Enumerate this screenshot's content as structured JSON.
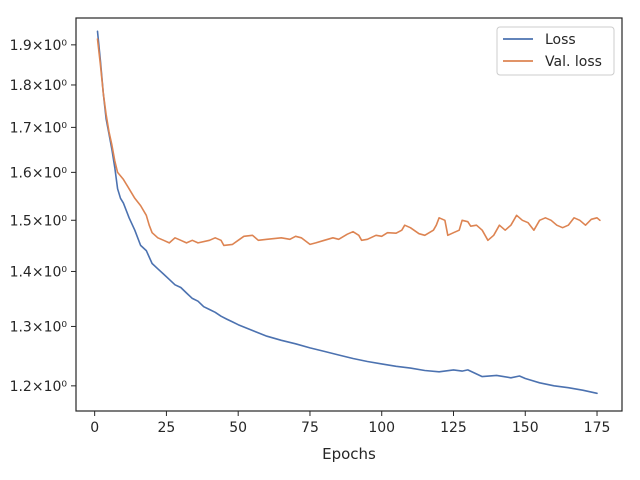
{
  "chart_data": {
    "type": "line",
    "title": "",
    "xlabel": "Epochs",
    "ylabel": "",
    "xlim": [
      -6.5,
      183.7
    ],
    "ylim": [
      1.16,
      1.97
    ],
    "yscale": "log",
    "grid": false,
    "legend_position": "top-right",
    "x_ticks": [
      0,
      25,
      50,
      75,
      100,
      125,
      150,
      175
    ],
    "y_ticks": [
      {
        "value": 1.2,
        "label": "1.2×10⁰"
      },
      {
        "value": 1.3,
        "label": "1.3×10⁰"
      },
      {
        "value": 1.4,
        "label": "1.4×10⁰"
      },
      {
        "value": 1.5,
        "label": "1.5×10⁰"
      },
      {
        "value": 1.6,
        "label": "1.6×10⁰"
      },
      {
        "value": 1.7,
        "label": "1.7×10⁰"
      },
      {
        "value": 1.8,
        "label": "1.8×10⁰"
      },
      {
        "value": 1.9,
        "label": "1.9×10⁰"
      }
    ],
    "series": [
      {
        "name": "Loss",
        "color": "#4c72b0",
        "points": [
          [
            1,
            1.935
          ],
          [
            2,
            1.86
          ],
          [
            3,
            1.78
          ],
          [
            4,
            1.72
          ],
          [
            5,
            1.685
          ],
          [
            6,
            1.65
          ],
          [
            7,
            1.61
          ],
          [
            8,
            1.565
          ],
          [
            9,
            1.545
          ],
          [
            10,
            1.535
          ],
          [
            12,
            1.505
          ],
          [
            14,
            1.48
          ],
          [
            16,
            1.45
          ],
          [
            18,
            1.44
          ],
          [
            20,
            1.415
          ],
          [
            22,
            1.405
          ],
          [
            24,
            1.395
          ],
          [
            26,
            1.385
          ],
          [
            28,
            1.375
          ],
          [
            30,
            1.37
          ],
          [
            32,
            1.36
          ],
          [
            34,
            1.35
          ],
          [
            36,
            1.345
          ],
          [
            38,
            1.335
          ],
          [
            40,
            1.33
          ],
          [
            42,
            1.325
          ],
          [
            44,
            1.318
          ],
          [
            46,
            1.313
          ],
          [
            48,
            1.308
          ],
          [
            50,
            1.303
          ],
          [
            55,
            1.293
          ],
          [
            60,
            1.283
          ],
          [
            65,
            1.276
          ],
          [
            70,
            1.27
          ],
          [
            75,
            1.263
          ],
          [
            80,
            1.257
          ],
          [
            85,
            1.251
          ],
          [
            90,
            1.245
          ],
          [
            95,
            1.24
          ],
          [
            100,
            1.236
          ],
          [
            105,
            1.232
          ],
          [
            110,
            1.229
          ],
          [
            115,
            1.225
          ],
          [
            120,
            1.223
          ],
          [
            125,
            1.226
          ],
          [
            128,
            1.224
          ],
          [
            130,
            1.226
          ],
          [
            135,
            1.215
          ],
          [
            140,
            1.217
          ],
          [
            145,
            1.213
          ],
          [
            148,
            1.216
          ],
          [
            150,
            1.212
          ],
          [
            155,
            1.205
          ],
          [
            160,
            1.2
          ],
          [
            165,
            1.197
          ],
          [
            170,
            1.193
          ],
          [
            175,
            1.188
          ]
        ]
      },
      {
        "name": "Val. loss",
        "color": "#dd8452",
        "points": [
          [
            1,
            1.915
          ],
          [
            2,
            1.85
          ],
          [
            3,
            1.78
          ],
          [
            4,
            1.73
          ],
          [
            5,
            1.69
          ],
          [
            6,
            1.66
          ],
          [
            7,
            1.625
          ],
          [
            8,
            1.6
          ],
          [
            10,
            1.585
          ],
          [
            12,
            1.565
          ],
          [
            14,
            1.545
          ],
          [
            16,
            1.53
          ],
          [
            18,
            1.51
          ],
          [
            19,
            1.49
          ],
          [
            20,
            1.475
          ],
          [
            22,
            1.465
          ],
          [
            24,
            1.46
          ],
          [
            26,
            1.455
          ],
          [
            28,
            1.465
          ],
          [
            30,
            1.46
          ],
          [
            32,
            1.455
          ],
          [
            34,
            1.46
          ],
          [
            36,
            1.455
          ],
          [
            40,
            1.46
          ],
          [
            42,
            1.465
          ],
          [
            44,
            1.46
          ],
          [
            45,
            1.45
          ],
          [
            48,
            1.452
          ],
          [
            50,
            1.46
          ],
          [
            52,
            1.468
          ],
          [
            55,
            1.47
          ],
          [
            57,
            1.46
          ],
          [
            60,
            1.462
          ],
          [
            65,
            1.465
          ],
          [
            68,
            1.462
          ],
          [
            70,
            1.468
          ],
          [
            72,
            1.465
          ],
          [
            75,
            1.452
          ],
          [
            77,
            1.455
          ],
          [
            80,
            1.46
          ],
          [
            83,
            1.465
          ],
          [
            85,
            1.462
          ],
          [
            88,
            1.472
          ],
          [
            90,
            1.477
          ],
          [
            92,
            1.47
          ],
          [
            93,
            1.46
          ],
          [
            95,
            1.462
          ],
          [
            98,
            1.47
          ],
          [
            100,
            1.468
          ],
          [
            102,
            1.475
          ],
          [
            105,
            1.474
          ],
          [
            107,
            1.48
          ],
          [
            108,
            1.49
          ],
          [
            110,
            1.485
          ],
          [
            113,
            1.473
          ],
          [
            115,
            1.47
          ],
          [
            118,
            1.48
          ],
          [
            119,
            1.49
          ],
          [
            120,
            1.505
          ],
          [
            122,
            1.5
          ],
          [
            123,
            1.47
          ],
          [
            125,
            1.475
          ],
          [
            127,
            1.48
          ],
          [
            128,
            1.5
          ],
          [
            130,
            1.497
          ],
          [
            131,
            1.488
          ],
          [
            133,
            1.49
          ],
          [
            135,
            1.48
          ],
          [
            137,
            1.46
          ],
          [
            139,
            1.47
          ],
          [
            141,
            1.49
          ],
          [
            143,
            1.48
          ],
          [
            145,
            1.49
          ],
          [
            147,
            1.51
          ],
          [
            149,
            1.5
          ],
          [
            151,
            1.495
          ],
          [
            153,
            1.48
          ],
          [
            155,
            1.5
          ],
          [
            157,
            1.505
          ],
          [
            159,
            1.5
          ],
          [
            161,
            1.49
          ],
          [
            163,
            1.485
          ],
          [
            165,
            1.49
          ],
          [
            167,
            1.505
          ],
          [
            169,
            1.5
          ],
          [
            171,
            1.49
          ],
          [
            173,
            1.502
          ],
          [
            175,
            1.505
          ],
          [
            176,
            1.5
          ]
        ]
      }
    ]
  }
}
